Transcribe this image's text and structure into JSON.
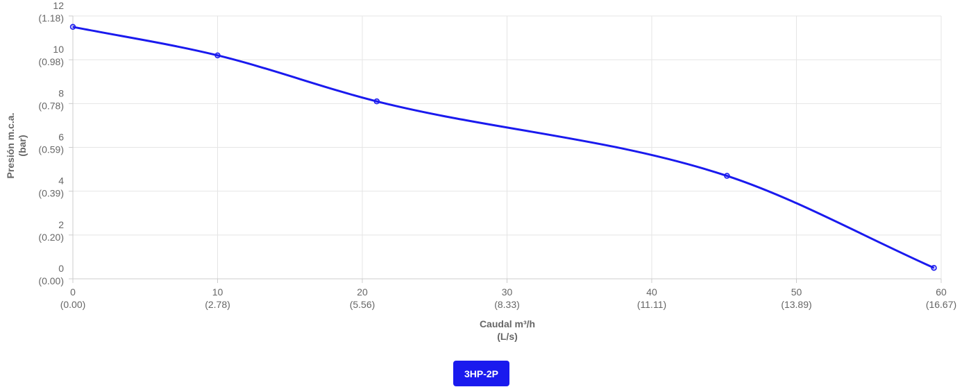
{
  "chart_data": {
    "type": "line",
    "xlabel": "Caudal m³/h",
    "xlabel_sub": "(L/s)",
    "ylabel": "Presión m.c.a.",
    "ylabel_sub": "(bar)",
    "xlim": [
      0,
      60
    ],
    "ylim": [
      0,
      12
    ],
    "grid": true,
    "x_ticks": [
      {
        "value": 0,
        "label": "0",
        "sub": "(0.00)"
      },
      {
        "value": 10,
        "label": "10",
        "sub": "(2.78)"
      },
      {
        "value": 20,
        "label": "20",
        "sub": "(5.56)"
      },
      {
        "value": 30,
        "label": "30",
        "sub": "(8.33)"
      },
      {
        "value": 40,
        "label": "40",
        "sub": "(11.11)"
      },
      {
        "value": 50,
        "label": "50",
        "sub": "(13.89)"
      },
      {
        "value": 60,
        "label": "60",
        "sub": "(16.67)"
      }
    ],
    "y_ticks": [
      {
        "value": 0,
        "label": "0",
        "sub": "(0.00)"
      },
      {
        "value": 2,
        "label": "2",
        "sub": "(0.20)"
      },
      {
        "value": 4,
        "label": "4",
        "sub": "(0.39)"
      },
      {
        "value": 6,
        "label": "6",
        "sub": "(0.59)"
      },
      {
        "value": 8,
        "label": "8",
        "sub": "(0.78)"
      },
      {
        "value": 10,
        "label": "10",
        "sub": "(0.98)"
      },
      {
        "value": 12,
        "label": "12",
        "sub": "(1.18)"
      }
    ],
    "series": [
      {
        "name": "3HP-2P",
        "color": "#1a1aee",
        "x": [
          0,
          10,
          21,
          45.2,
          59.5
        ],
        "y": [
          11.5,
          10.2,
          8.1,
          4.7,
          0.5
        ]
      }
    ]
  },
  "legend": {
    "label": "3HP-2P"
  }
}
